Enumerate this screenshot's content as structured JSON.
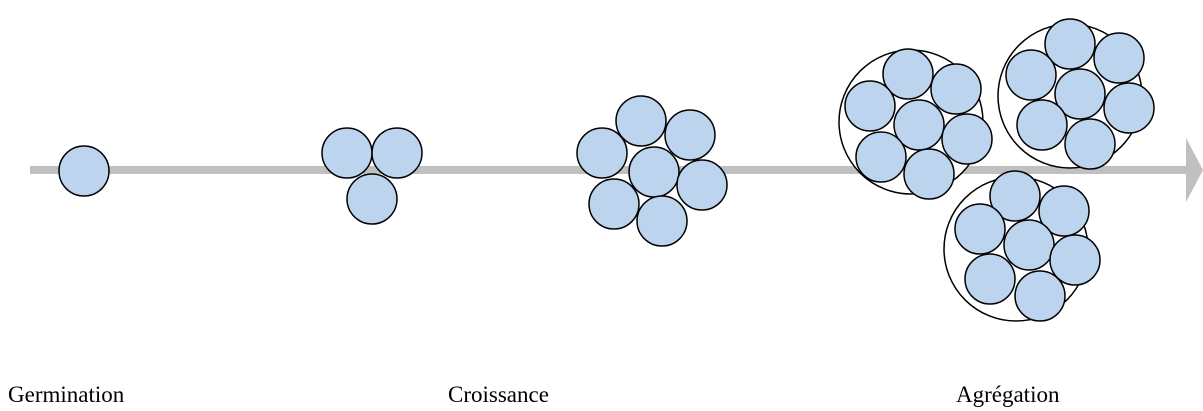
{
  "labels": {
    "germination": "Germination",
    "croissance": "Croissance",
    "agregation": "Agrégation"
  },
  "colors": {
    "axis": "#c0c0c0",
    "particle_fill": "#bdd4ee",
    "particle_stroke": "#000000",
    "aggregate_stroke": "#000000"
  }
}
